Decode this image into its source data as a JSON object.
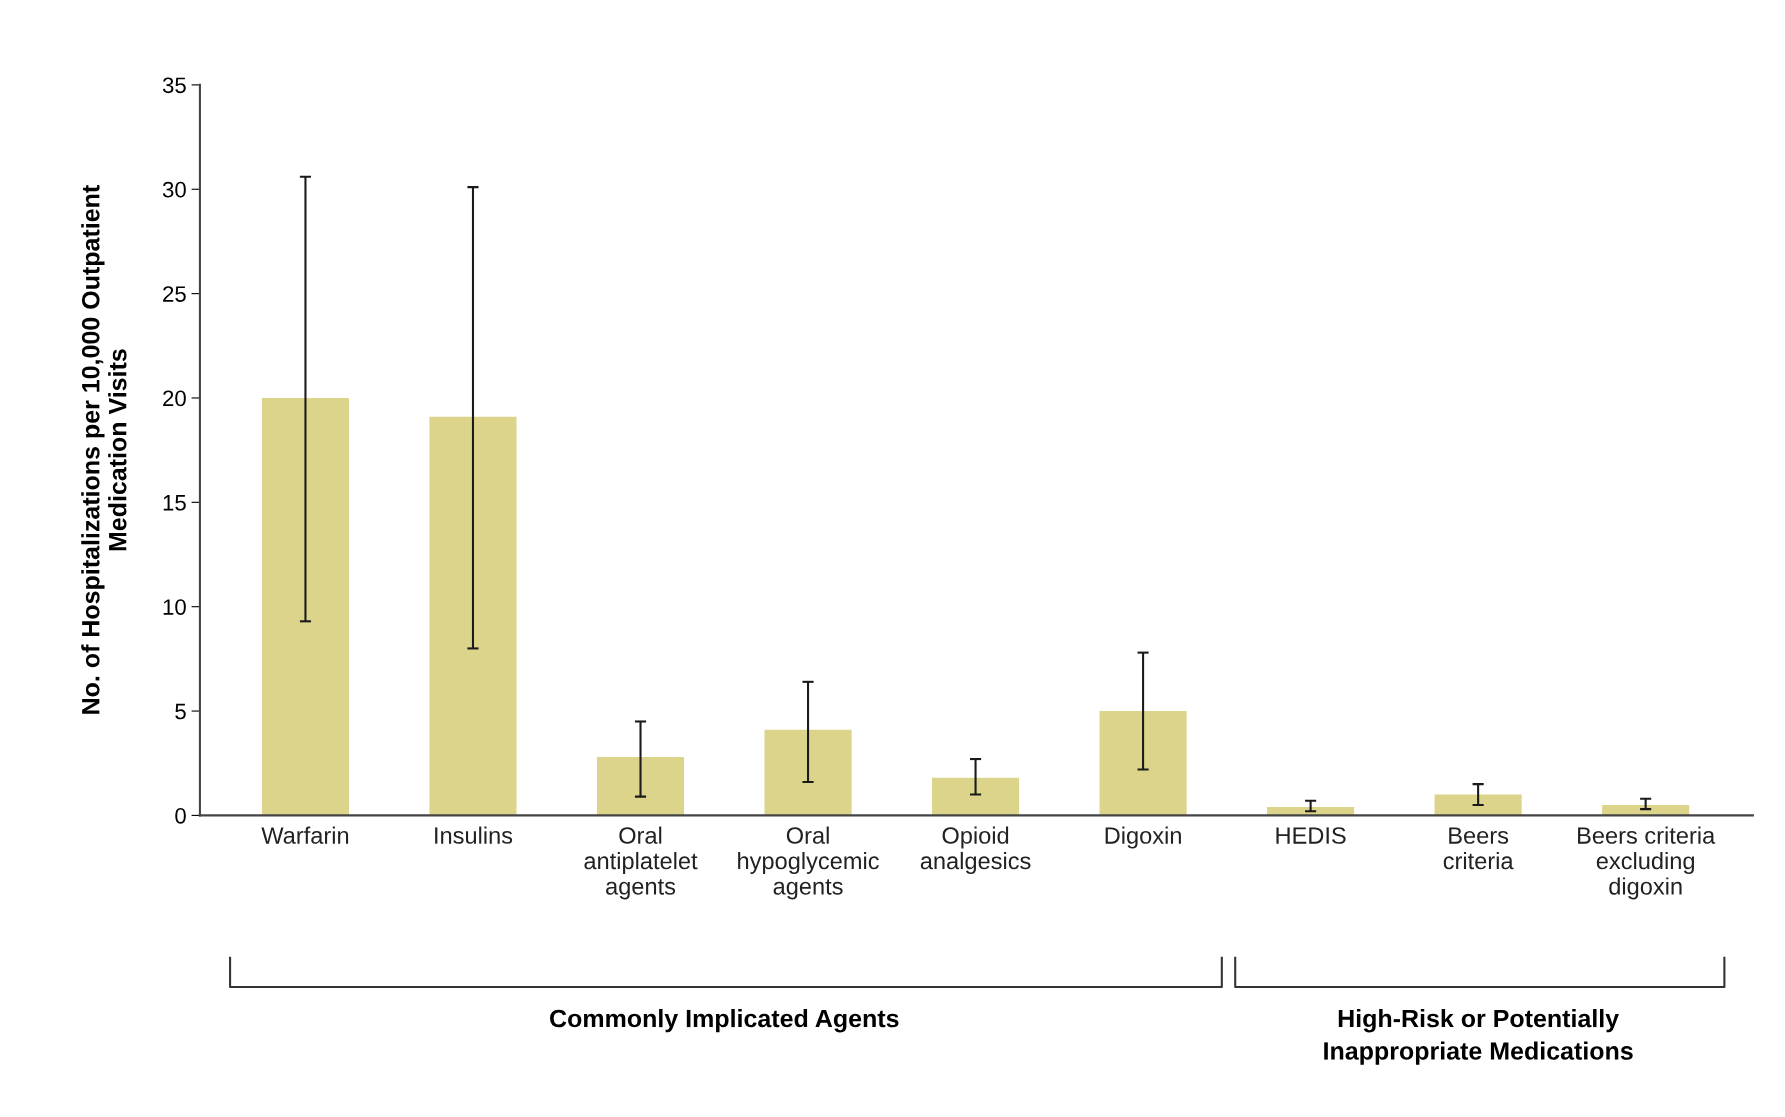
{
  "chart_data": {
    "type": "bar",
    "ylabel": "No. of Hospitalizations per 10,000 Outpatient\nMedication Visits",
    "categories": [
      "Warfarin",
      "Insulins",
      "Oral\nantiplatelet\nagents",
      "Oral\nhypoglycemic\nagents",
      "Opioid\nanalgesics",
      "Digoxin",
      "HEDIS",
      "Beers\ncriteria",
      "Beers criteria\nexcluding\ndigoxin"
    ],
    "values": [
      20.0,
      19.1,
      2.8,
      4.1,
      1.8,
      5.0,
      0.4,
      1.0,
      0.5
    ],
    "errors": [
      [
        9.3,
        30.6
      ],
      [
        8.0,
        30.1
      ],
      [
        0.9,
        4.5
      ],
      [
        1.6,
        6.4
      ],
      [
        1.0,
        2.7
      ],
      [
        2.2,
        7.8
      ],
      [
        0.2,
        0.7
      ],
      [
        0.5,
        1.5
      ],
      [
        0.3,
        0.8
      ]
    ],
    "color": "#dcd48a",
    "ylim": [
      0,
      35
    ],
    "yticks": [
      0,
      5,
      10,
      15,
      20,
      25,
      30,
      35
    ],
    "grid": false,
    "annotations": [
      "Commonly Implicated Agents",
      "High-Risk or Potentially\nInappropriate Medications"
    ]
  }
}
